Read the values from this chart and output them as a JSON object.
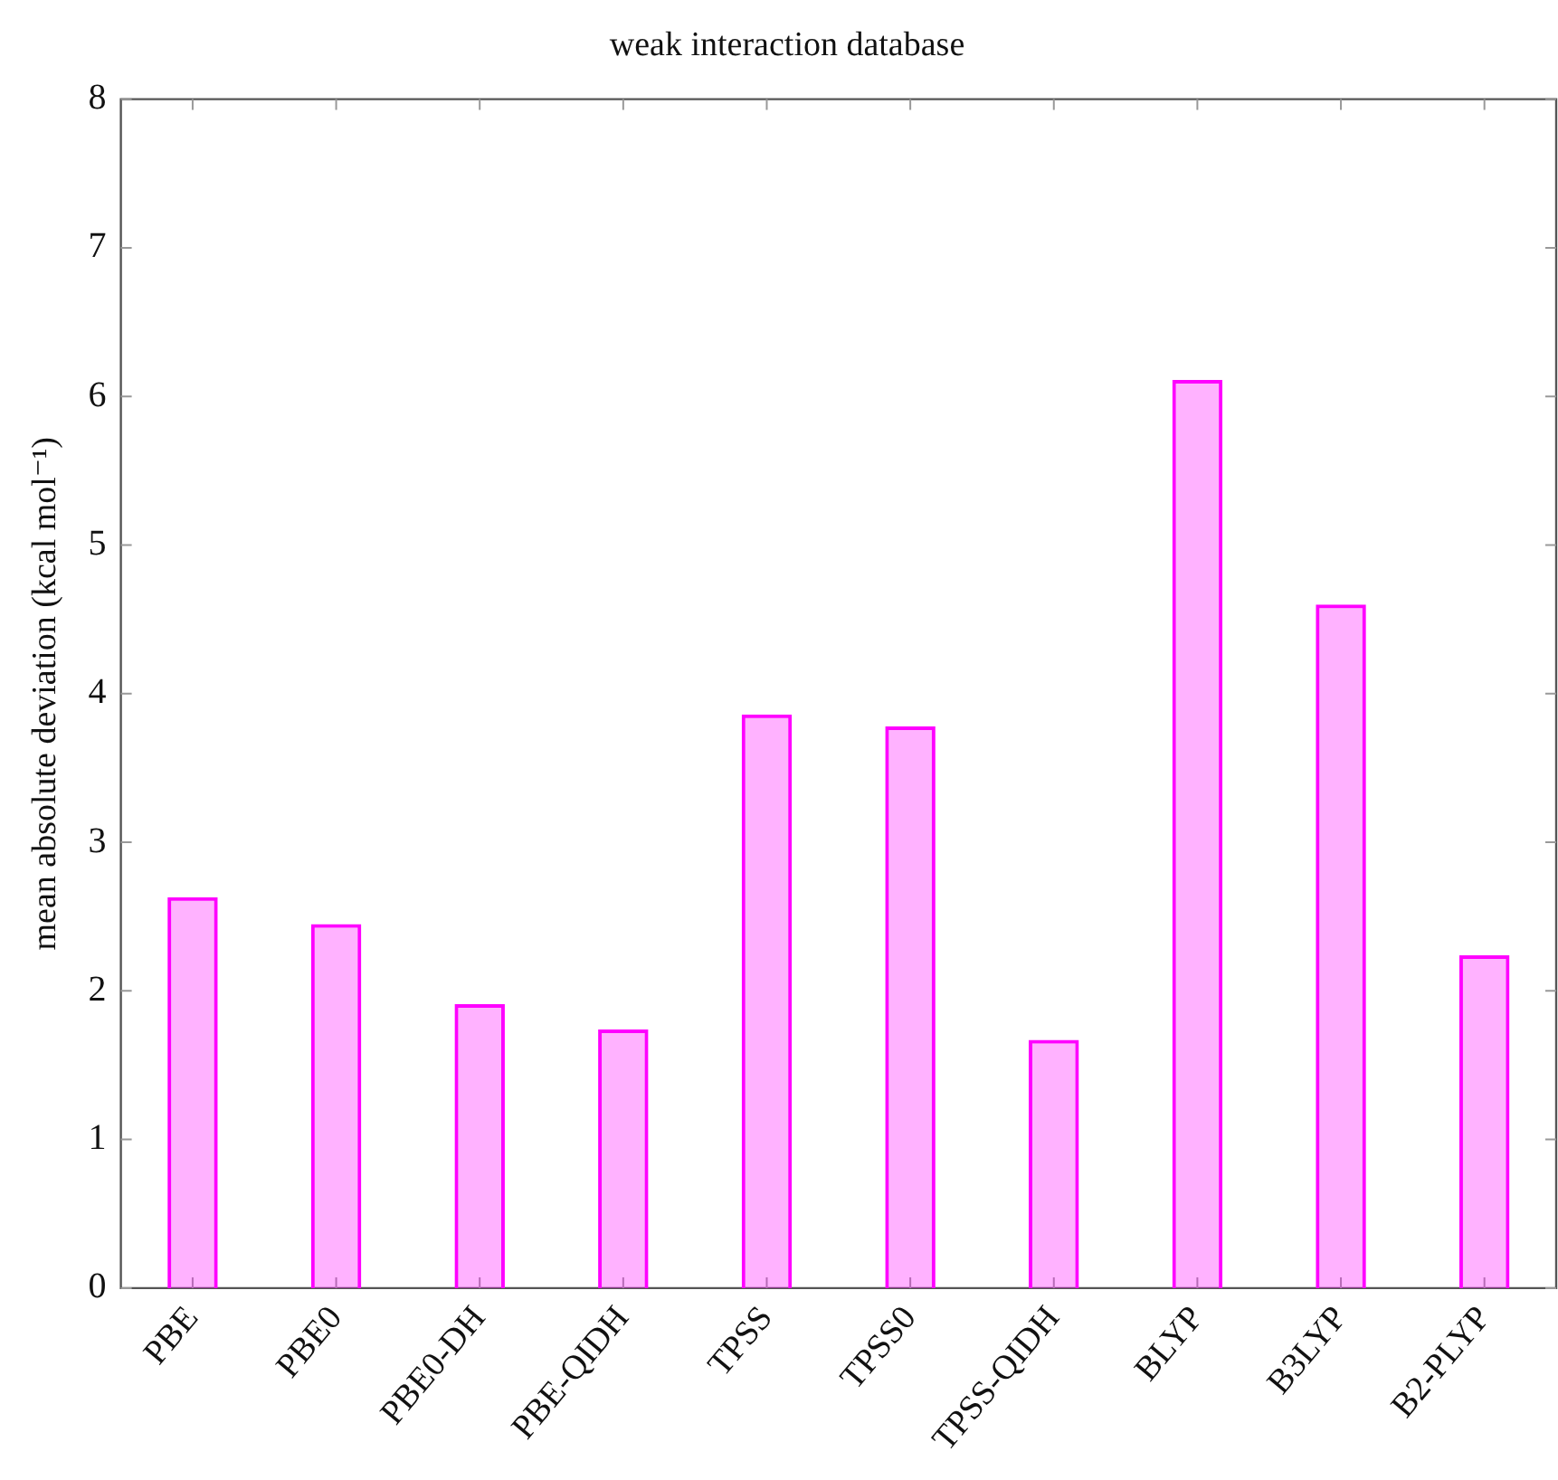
{
  "chart_data": {
    "type": "bar",
    "title": "weak interaction database",
    "ylabel": "mean absolute deviation (kcal mol⁻¹)",
    "categories": [
      "PBE",
      "PBE0",
      "PBE0-DH",
      "PBE-QIDH",
      "TPSS",
      "TPSS0",
      "TPSS-QIDH",
      "BLYP",
      "B3LYP",
      "B2-PLYP"
    ],
    "values": [
      2.63,
      2.45,
      1.91,
      1.74,
      3.86,
      3.78,
      1.67,
      6.11,
      4.6,
      2.24
    ],
    "color": "#ff00ff",
    "ylim": [
      0,
      8
    ],
    "yticks": [
      0,
      1,
      2,
      3,
      4,
      5,
      6,
      7,
      8
    ],
    "grid": false,
    "legend": false
  }
}
